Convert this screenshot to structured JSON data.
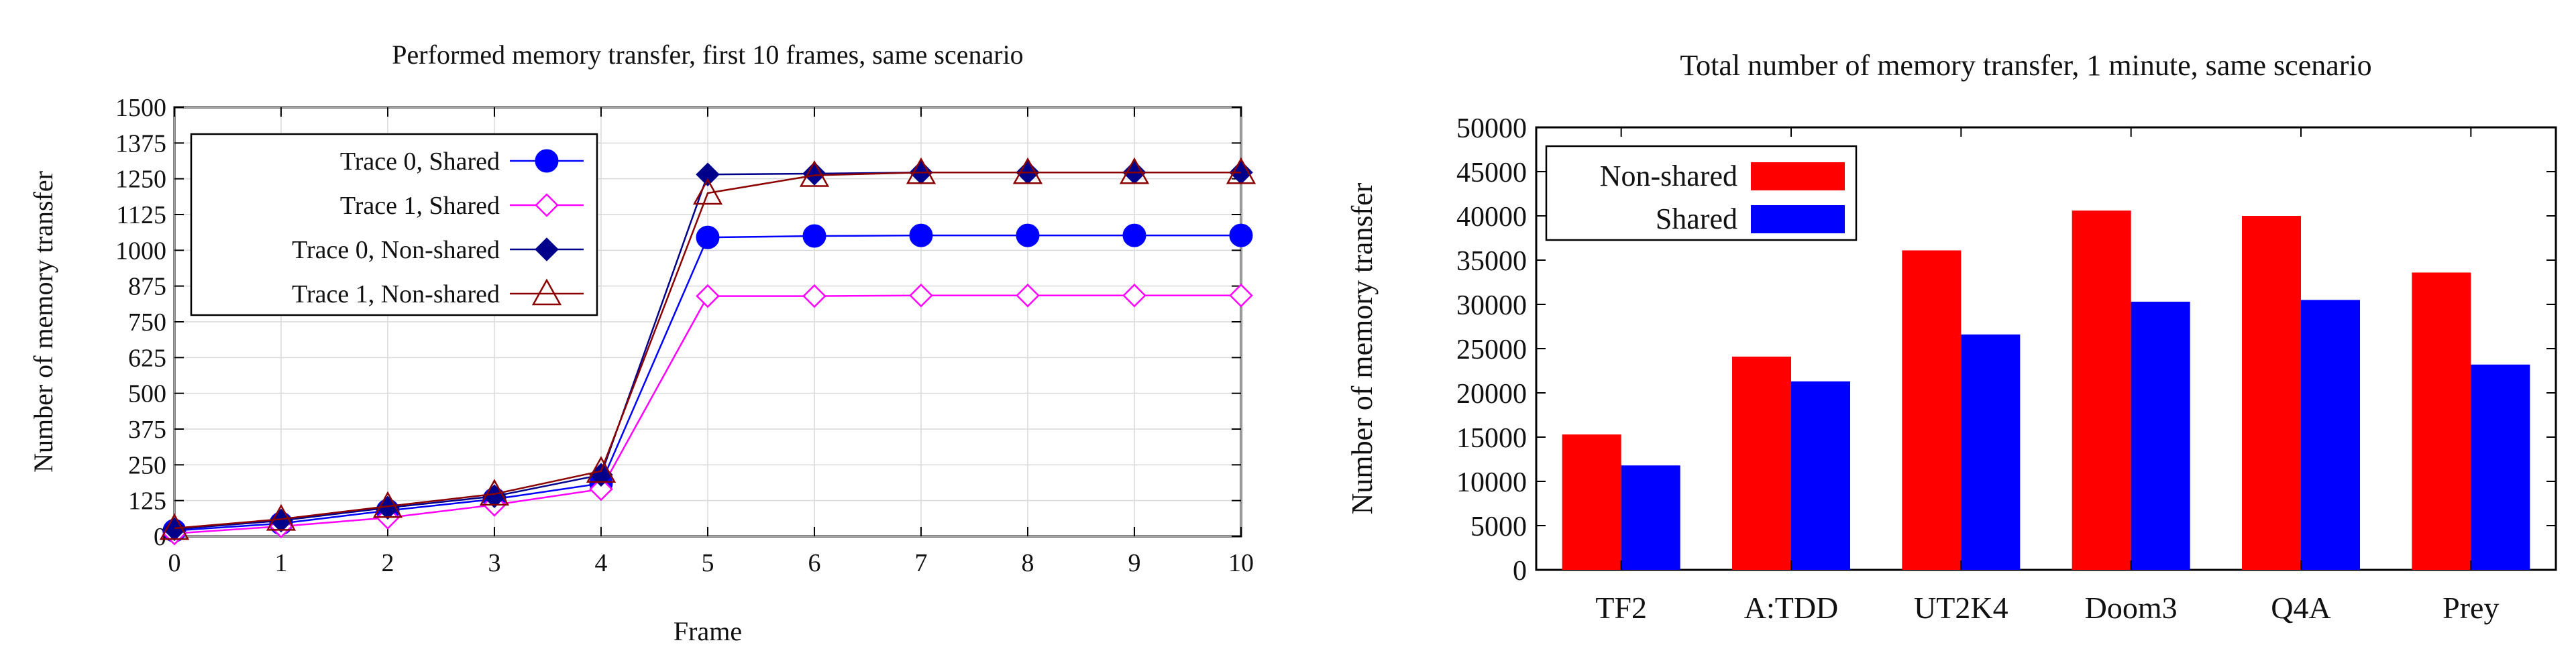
{
  "chart_data": [
    {
      "type": "line",
      "title": "Performed memory transfer, first 10 frames, same scenario",
      "xlabel": "Frame",
      "ylabel": "Number of memory transfer",
      "xlim": [
        0,
        10
      ],
      "ylim": [
        0,
        1500
      ],
      "x_ticks": [
        "0",
        "1",
        "2",
        "3",
        "4",
        "5",
        "6",
        "7",
        "8",
        "9",
        "10"
      ],
      "y_ticks": [
        "0",
        "125",
        "250",
        "375",
        "500",
        "625",
        "750",
        "875",
        "1000",
        "1125",
        "1250",
        "1375",
        "1500"
      ],
      "grid": true,
      "legend_position": "top-left",
      "x": [
        0,
        1,
        2,
        3,
        4,
        5,
        6,
        7,
        8,
        9,
        10
      ],
      "series": [
        {
          "name": "Trace 0, Shared",
          "color": "#0000ff",
          "marker": "circle",
          "values": [
            20,
            45,
            90,
            130,
            185,
            1045,
            1050,
            1052,
            1052,
            1052,
            1052
          ]
        },
        {
          "name": "Trace 1, Shared",
          "color": "#ff00ff",
          "marker": "diamond-open",
          "values": [
            10,
            35,
            65,
            110,
            165,
            840,
            840,
            842,
            842,
            842,
            842
          ]
        },
        {
          "name": "Trace 0, Non-shared",
          "color": "#00008b",
          "marker": "diamond-filled",
          "values": [
            25,
            55,
            100,
            140,
            215,
            1265,
            1268,
            1272,
            1272,
            1272,
            1272
          ]
        },
        {
          "name": "Trace 1, Non-shared",
          "color": "#8b0000",
          "marker": "triangle-open",
          "values": [
            28,
            60,
            105,
            148,
            228,
            1200,
            1262,
            1272,
            1272,
            1272,
            1272
          ]
        }
      ]
    },
    {
      "type": "bar",
      "title": "Total number of memory transfer, 1 minute, same scenario",
      "xlabel": "",
      "ylabel": "Number of memory transfer",
      "ylim": [
        0,
        50000
      ],
      "y_ticks": [
        "0",
        "5000",
        "10000",
        "15000",
        "20000",
        "25000",
        "30000",
        "35000",
        "40000",
        "45000",
        "50000"
      ],
      "grid": false,
      "legend_position": "top-left",
      "categories": [
        "TF2",
        "A:TDD",
        "UT2K4",
        "Doom3",
        "Q4A",
        "Prey"
      ],
      "series": [
        {
          "name": "Non-shared",
          "color": "#ff0000",
          "values": [
            15300,
            24100,
            36100,
            40600,
            40000,
            33600
          ]
        },
        {
          "name": "Shared",
          "color": "#0000ff",
          "values": [
            11800,
            21300,
            26600,
            30300,
            30500,
            23200
          ]
        }
      ]
    }
  ]
}
